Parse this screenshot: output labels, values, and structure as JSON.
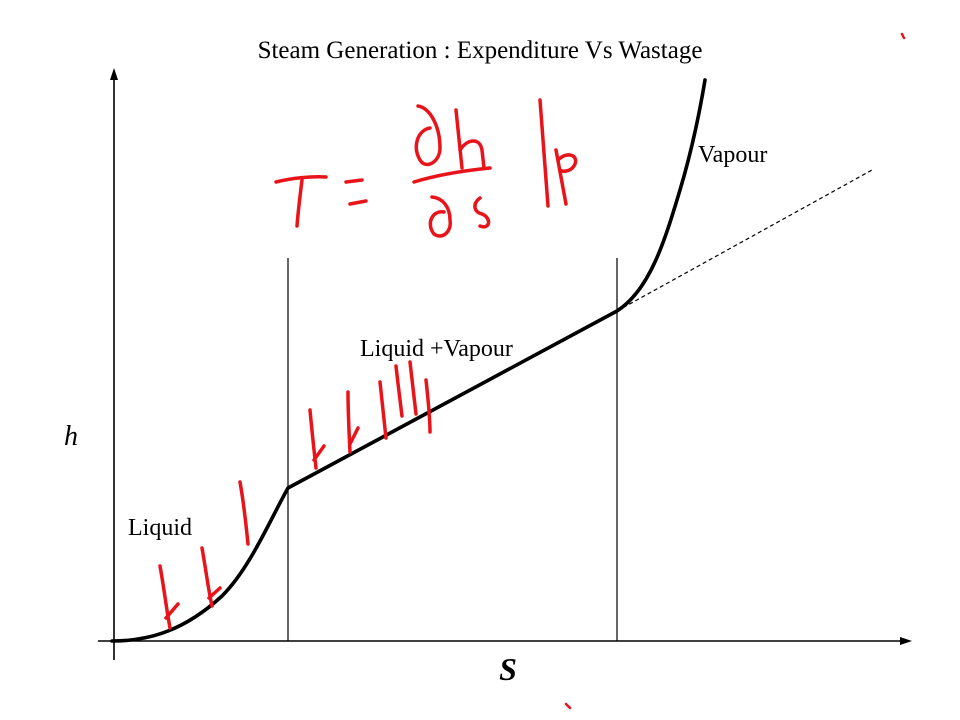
{
  "title": "Steam Generation : Expenditure Vs Wastage",
  "axes": {
    "y_label": "h",
    "x_label": "S"
  },
  "regions": {
    "liquid": "Liquid",
    "mixture": "Liquid +Vapour",
    "vapour": "Vapour"
  },
  "colors": {
    "ink": "#000000",
    "annotation": "#e8141a"
  }
}
